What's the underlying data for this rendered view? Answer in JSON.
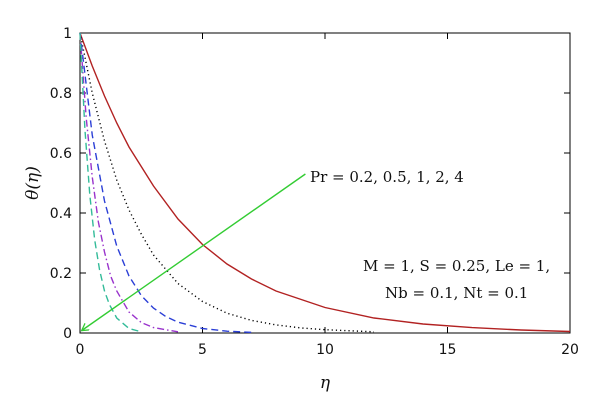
{
  "chart_data": {
    "type": "line",
    "xlabel": "η",
    "ylabel": "θ(η)",
    "xlim": [
      0,
      20
    ],
    "ylim": [
      0,
      1
    ],
    "x_ticks": [
      0,
      5,
      10,
      15,
      20
    ],
    "y_ticks": [
      0,
      0.2,
      0.4,
      0.6,
      0.8,
      1
    ],
    "x_tick_labels": [
      "0",
      "5",
      "10",
      "15",
      "20"
    ],
    "y_tick_labels": [
      "0",
      "0.2",
      "0.4",
      "0.6",
      "0.8",
      "1"
    ],
    "grid": false,
    "series": [
      {
        "color": "#b22222",
        "dash": "solid",
        "x": [
          0,
          0.5,
          1,
          1.5,
          2,
          3,
          4,
          5,
          6,
          7,
          8,
          10,
          12,
          14,
          16,
          18,
          20
        ],
        "values": [
          1.0,
          0.89,
          0.79,
          0.7,
          0.62,
          0.49,
          0.38,
          0.295,
          0.23,
          0.18,
          0.14,
          0.085,
          0.05,
          0.03,
          0.018,
          0.01,
          0.005
        ]
      },
      {
        "color": "#000000",
        "dash": "dotted",
        "x": [
          0,
          0.5,
          1,
          1.5,
          2,
          2.5,
          3,
          4,
          5,
          6,
          7,
          8,
          9,
          10,
          12
        ],
        "values": [
          1.0,
          0.8,
          0.64,
          0.51,
          0.41,
          0.33,
          0.26,
          0.165,
          0.105,
          0.066,
          0.042,
          0.027,
          0.017,
          0.011,
          0.004
        ]
      },
      {
        "color": "#2b3fd6",
        "dash": "dashed",
        "x": [
          0,
          0.5,
          1,
          1.5,
          2,
          2.5,
          3,
          3.5,
          4,
          5,
          6,
          7
        ],
        "values": [
          1.0,
          0.66,
          0.44,
          0.29,
          0.19,
          0.125,
          0.083,
          0.055,
          0.036,
          0.015,
          0.006,
          0.002
        ]
      },
      {
        "color": "#9933cc",
        "dash": "dashdot",
        "x": [
          0,
          0.25,
          0.5,
          0.75,
          1,
          1.25,
          1.5,
          2,
          2.5,
          3,
          4
        ],
        "values": [
          1.0,
          0.72,
          0.52,
          0.37,
          0.27,
          0.19,
          0.14,
          0.07,
          0.035,
          0.018,
          0.004
        ]
      },
      {
        "color": "#33bb99",
        "dash": "dashed",
        "x": [
          0,
          0.2,
          0.4,
          0.6,
          0.8,
          1,
          1.2,
          1.5,
          2,
          2.5
        ],
        "values": [
          1.0,
          0.68,
          0.46,
          0.31,
          0.21,
          0.14,
          0.095,
          0.05,
          0.015,
          0.004
        ]
      }
    ],
    "annotations": {
      "pr": "Pr = 0.2, 0.5, 1, 2, 4",
      "params_line1": "M = 1, S = 0.25, Le = 1,",
      "params_line2": "Nb = 0.1, Nt = 0.1"
    },
    "arrow": {
      "color": "#33cc33",
      "from": [
        9.2,
        0.53
      ],
      "to": [
        0.1,
        0.01
      ]
    }
  }
}
